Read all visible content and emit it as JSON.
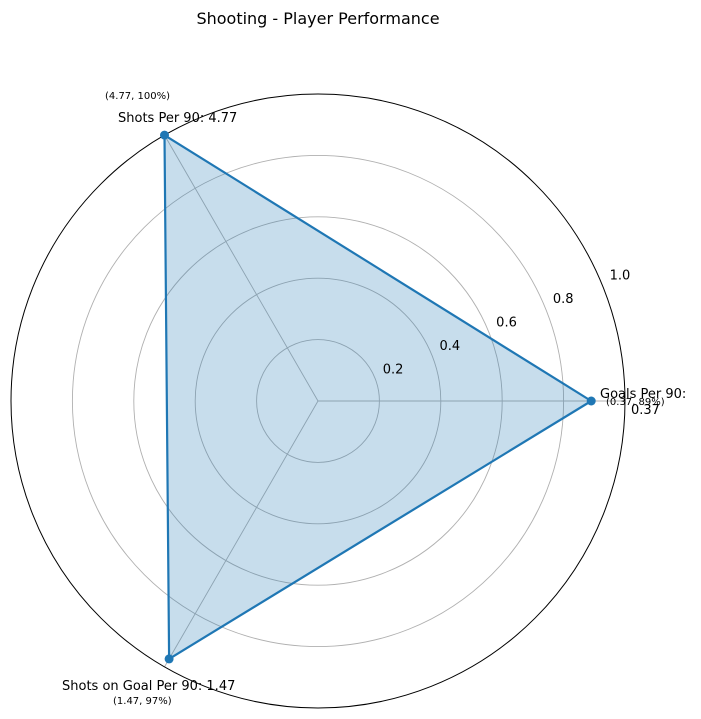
{
  "chart_data": {
    "type": "radar",
    "title": "Shooting - Player Performance",
    "axes": [
      {
        "label": "Goals Per 90: 0.37",
        "value": 0.37,
        "percentile": 0.89,
        "annotation": "(0.37, 89%)"
      },
      {
        "label": "Shots Per 90: 4.77",
        "value": 4.77,
        "percentile": 1.0,
        "annotation": "(4.77, 100%)"
      },
      {
        "label": "Shots on Goal Per 90: 1.47",
        "value": 1.47,
        "percentile": 0.97,
        "annotation": "(1.47, 97%)"
      }
    ],
    "radial_ticks": [
      "0.2",
      "0.4",
      "0.6",
      "0.8",
      "1.0"
    ],
    "radial_tick_values": [
      0.2,
      0.4,
      0.6,
      0.8,
      1.0
    ],
    "rlim": [
      0,
      1
    ],
    "grid": true,
    "colors": {
      "line": "#1f77b4",
      "fill": "#1f77b4",
      "grid": "#b0b0b0",
      "frame": "#000000"
    }
  }
}
